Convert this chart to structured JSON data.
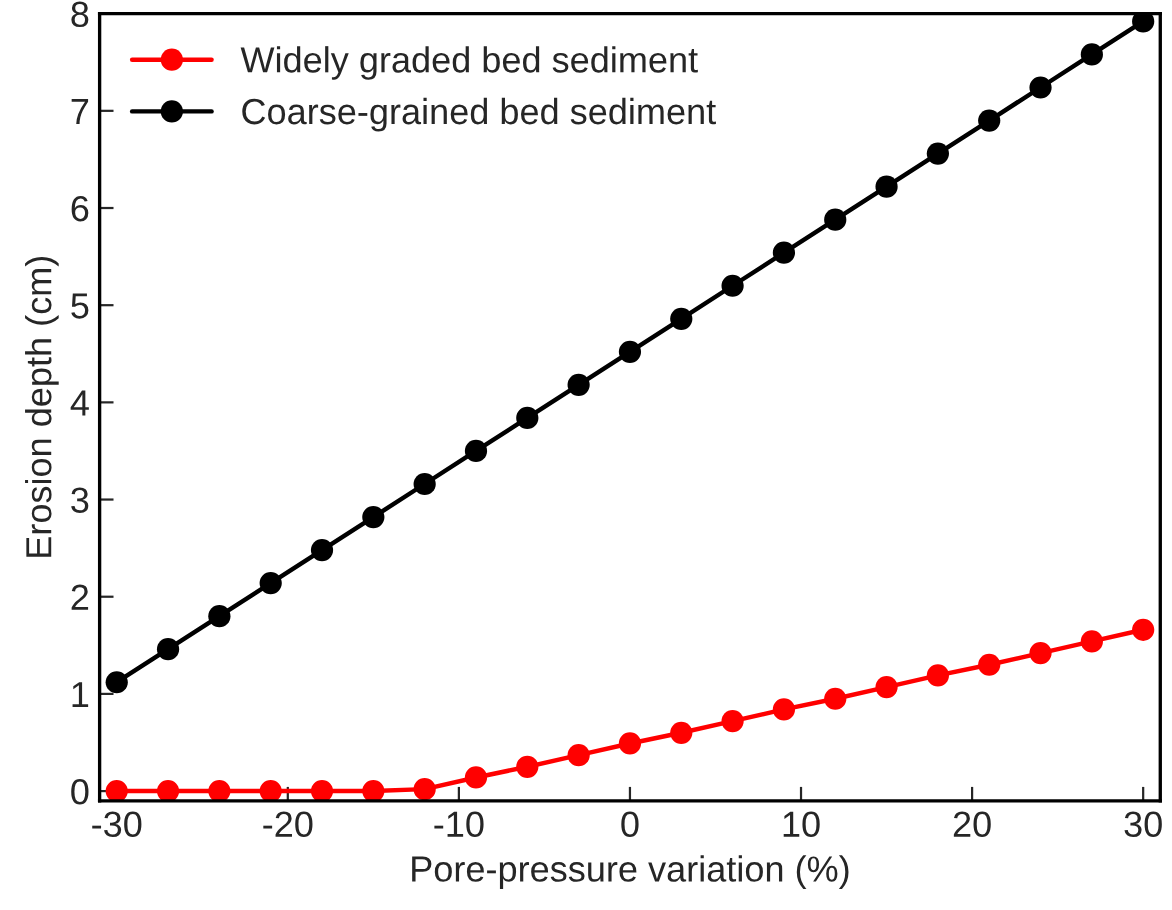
{
  "chart_data": {
    "type": "line",
    "xlabel": "Pore-pressure variation (%)",
    "ylabel": "Erosion depth (cm)",
    "x": [
      -30,
      -27,
      -24,
      -21,
      -18,
      -15,
      -12,
      -9,
      -6,
      -3,
      0,
      3,
      6,
      9,
      12,
      15,
      18,
      21,
      24,
      27,
      30
    ],
    "series": [
      {
        "name": "Widely graded bed sediment",
        "color": "#ff0000",
        "values": [
          0,
          0,
          0,
          0,
          0,
          0,
          0.02,
          0.14,
          0.25,
          0.37,
          0.49,
          0.6,
          0.72,
          0.84,
          0.95,
          1.07,
          1.19,
          1.3,
          1.42,
          1.54,
          1.66
        ]
      },
      {
        "name": "Coarse-grained bed sediment",
        "color": "#000000",
        "values": [
          1.12,
          1.46,
          1.8,
          2.14,
          2.48,
          2.82,
          3.16,
          3.5,
          3.84,
          4.18,
          4.52,
          4.86,
          5.2,
          5.54,
          5.88,
          6.22,
          6.56,
          6.9,
          7.24,
          7.58,
          7.92
        ]
      }
    ],
    "xlim": [
      -31,
      31
    ],
    "ylim": [
      -0.1,
      8
    ],
    "xticks": [
      -30,
      -20,
      -10,
      0,
      10,
      20,
      30
    ],
    "yticks": [
      0,
      1,
      2,
      3,
      4,
      5,
      6,
      7,
      8
    ],
    "grid": false,
    "legend": "top left",
    "marker": "circle",
    "line_style": "solid"
  }
}
